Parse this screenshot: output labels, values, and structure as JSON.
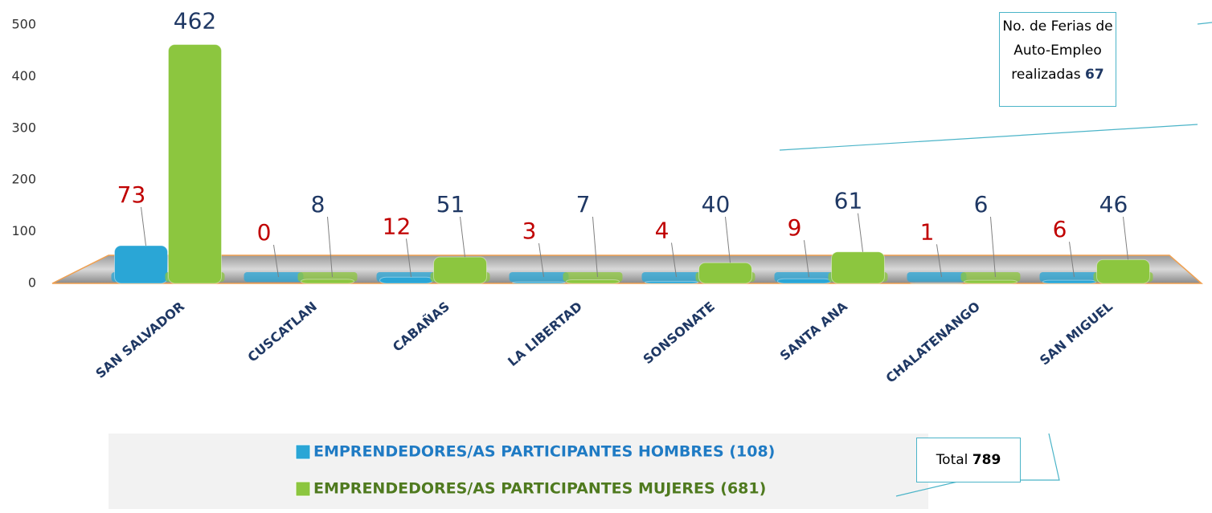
{
  "chart_data": {
    "type": "bar",
    "categories": [
      "SAN SALVADOR",
      "CUSCATLAN",
      "CABAÑAS",
      "LA LIBERTAD",
      "SONSONATE",
      "SANTA ANA",
      "CHALATENANGO",
      "SAN MIGUEL"
    ],
    "series": [
      {
        "name": "EMPRENDEDORES/AS PARTICIPANTES HOMBRES (108)",
        "color": "#2aa6d6",
        "label_color": "#c00000",
        "legend_color": "#1f7bc4",
        "values": [
          73,
          0,
          12,
          3,
          4,
          9,
          1,
          6
        ]
      },
      {
        "name": "EMPRENDEDORES/AS PARTICIPANTES MUJERES (681)",
        "color": "#8cc63f",
        "label_color": "#1f3864",
        "legend_color": "#4f7a1f",
        "values": [
          462,
          8,
          51,
          7,
          40,
          61,
          6,
          46
        ]
      }
    ],
    "ylim": [
      0,
      500
    ],
    "yticks": [
      0,
      100,
      200,
      300,
      400,
      500
    ],
    "annotations": [
      {
        "label": "No. de Ferias de Auto-Empleo realizadas",
        "value": 67
      },
      {
        "label": "Total",
        "value": 789
      }
    ]
  }
}
